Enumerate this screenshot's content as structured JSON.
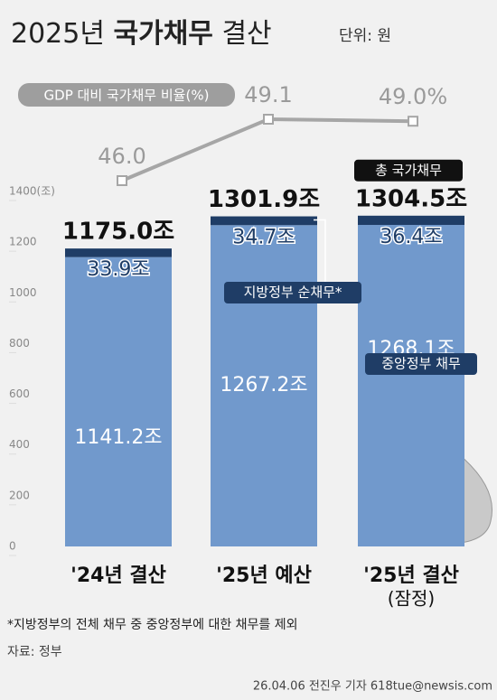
{
  "chart_data": {
    "type": "stacked_bar_line",
    "title": [
      "2025년",
      "국가채무",
      "결산"
    ],
    "unit": "단위: 원",
    "categories": [
      "'24년 결산",
      "'25년 예산",
      "'25년 결산"
    ],
    "series": [
      {
        "name": "중앙정부 채무",
        "color": "#7199cc",
        "values": [
          1141.2,
          1267.2,
          1268.1
        ],
        "value_labels": [
          "1141.2조",
          "1267.2조",
          "1268.1조"
        ]
      },
      {
        "name": "지방정부 순채무*",
        "color": "#1f3d66",
        "values": [
          33.9,
          34.7,
          36.4
        ],
        "value_labels": [
          "33.9조",
          "34.7조",
          "36.4조"
        ]
      }
    ],
    "totals": {
      "name": "총 국가채무",
      "values": [
        1175.0,
        1301.9,
        1304.5
      ],
      "value_labels": [
        "1175.0조",
        "1301.9조",
        "1304.5조"
      ]
    },
    "line": {
      "name": "GDP 대비 국가채무 비율(%)",
      "color": "#a6a6a6",
      "values": [
        46.0,
        49.1,
        49.0
      ],
      "value_labels": [
        "46.0",
        "49.1",
        "49.0%"
      ]
    },
    "provisional": "(잠정)",
    "ylim": [
      0,
      1400
    ],
    "yticks": [
      0,
      200,
      400,
      600,
      800,
      1000,
      1200,
      {
        "value": 1400,
        "label": "1400(조)"
      }
    ],
    "footnote": "*지방정부의 전체 채무 중 중앙정부에 대한 채무를 제외",
    "source": "자료: 정부",
    "credit": "26.04.06 전진우 기자 618tue@newsis.com"
  }
}
